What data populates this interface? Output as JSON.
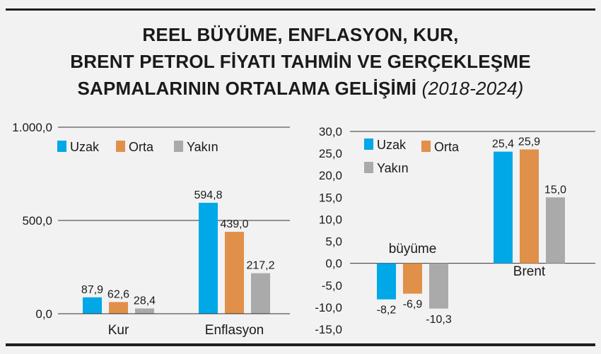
{
  "title": {
    "line1": "REEL BÜYÜME, ENFLASYON, KUR,",
    "line2": "BRENT PETROL FİYATI TAHMİN VE GERÇEKLEŞME",
    "line3": "SAPMALARININ ORTALAMA GELİŞİMİ",
    "years": "(2018-2024)"
  },
  "colors": {
    "Uzak": "#00a8e8",
    "Orta": "#e09048",
    "Yakın": "#aaaaaa"
  },
  "chart_data": [
    {
      "type": "bar",
      "categories": [
        "Kur",
        "Enflasyon"
      ],
      "series": [
        {
          "name": "Uzak",
          "values": [
            87.9,
            594.8
          ],
          "labels": [
            "87,9",
            "594,8"
          ]
        },
        {
          "name": "Orta",
          "values": [
            62.6,
            439.0
          ],
          "labels": [
            "62,6",
            "439,0"
          ]
        },
        {
          "name": "Yakın",
          "values": [
            28.4,
            217.2
          ],
          "labels": [
            "28,4",
            "217,2"
          ]
        }
      ],
      "yticks": [
        "1.000,0",
        "500,0",
        "0,0"
      ],
      "ylim": [
        0,
        1000
      ],
      "grid": true,
      "legend": "top-left"
    },
    {
      "type": "bar",
      "categories": [
        "büyüme",
        "Brent"
      ],
      "series": [
        {
          "name": "Uzak",
          "values": [
            -8.2,
            25.4
          ],
          "labels": [
            "-8,2",
            "25,4"
          ]
        },
        {
          "name": "Orta",
          "values": [
            -6.9,
            25.9
          ],
          "labels": [
            "-6,9",
            "25,9"
          ]
        },
        {
          "name": "Yakın",
          "values": [
            -10.3,
            15.0
          ],
          "labels": [
            "-10,3",
            "15,0"
          ]
        }
      ],
      "yticks": [
        "30,0",
        "25,0",
        "20,0",
        "15,0",
        "10,0",
        "5,0",
        "0,0",
        "-5,0",
        "-10,0",
        "-15,0"
      ],
      "ylim": [
        -15,
        30
      ],
      "grid": true,
      "legend": "top-left"
    }
  ]
}
